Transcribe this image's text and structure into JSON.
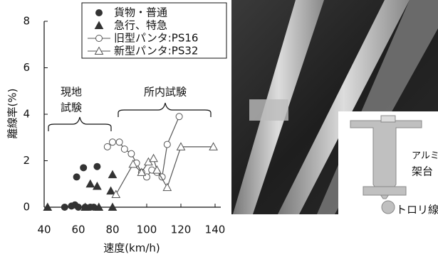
{
  "chart_data": {
    "type": "scatter",
    "x_label": "速度(km/h)",
    "y_label": "離線率(%)",
    "xlim": [
      40,
      140
    ],
    "xticks": [
      40,
      60,
      80,
      100,
      120,
      140
    ],
    "ylim": [
      0,
      8
    ],
    "yticks": [
      0,
      2,
      4,
      6,
      8
    ],
    "annotations": [
      "現地",
      "試験",
      "所内試験"
    ],
    "series": [
      {
        "name": "貨物・普通",
        "color": "#333333",
        "marker": "circle",
        "filled": true,
        "line": false,
        "x": [
          52,
          56,
          58,
          59,
          60,
          63,
          64,
          67,
          69,
          71
        ],
        "values": [
          0,
          0.05,
          0.1,
          1.3,
          0,
          1.7,
          0,
          0,
          0,
          1.75
        ]
      },
      {
        "name": "急行、特急",
        "color": "#333333",
        "marker": "triangle",
        "filled": true,
        "line": false,
        "x": [
          42,
          64,
          67,
          71,
          72,
          79,
          80,
          80
        ],
        "values": [
          0,
          0,
          1.0,
          0.9,
          0,
          0.7,
          1.4,
          0
        ]
      },
      {
        "name": "旧型パンタ:PS16",
        "color": "#555555",
        "marker": "circle",
        "filled": false,
        "line": true,
        "x": [
          77,
          80,
          84,
          87,
          91,
          94,
          97,
          100,
          103,
          106,
          109,
          112,
          119
        ],
        "values": [
          2.6,
          2.8,
          2.8,
          2.5,
          2.3,
          1.9,
          1.5,
          1.3,
          1.6,
          1.5,
          1.3,
          2.7,
          3.9
        ]
      },
      {
        "name": "新型パンタ:PS32",
        "color": "#555555",
        "marker": "triangle",
        "filled": false,
        "line": true,
        "x": [
          82,
          92,
          97,
          101,
          104,
          106,
          112,
          120,
          139
        ],
        "values": [
          0.55,
          1.85,
          1.5,
          1.95,
          2.1,
          1.6,
          0.85,
          2.6,
          2.6
        ]
      }
    ]
  },
  "photo": {
    "labels": [
      "アルミ",
      "架台",
      "トロリ線"
    ]
  }
}
